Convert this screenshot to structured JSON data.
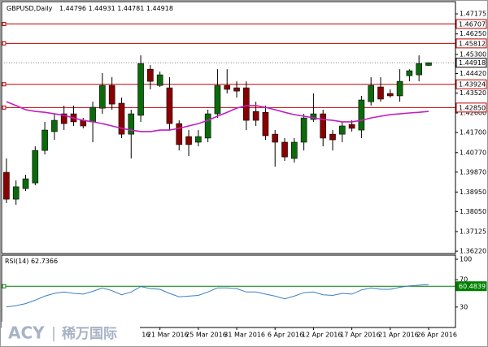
{
  "chart_data": [
    {
      "type": "candlestick",
      "title": "GBPUSD,Daily",
      "xlim": [
        -0.5,
        46.8
      ],
      "xticks": [
        {
          "value": 12,
          "label": "16"
        },
        {
          "value": 16,
          "label": "21 Mar 2016"
        },
        {
          "value": 20,
          "label": "25 Mar 2016"
        },
        {
          "value": 24,
          "label": "31 Mar 2016"
        },
        {
          "value": 28,
          "label": "6 Apr 2016"
        },
        {
          "value": 32,
          "label": "12 Apr 2016"
        },
        {
          "value": 36,
          "label": "17 Apr 2016"
        },
        {
          "value": 40,
          "label": "21 Apr 2016"
        },
        {
          "value": 44,
          "label": "26 Apr 2016"
        }
      ],
      "open": [
        1.3986,
        1.3862,
        1.3911,
        1.3937,
        1.4087,
        1.4174,
        1.4256,
        1.4256,
        1.4226,
        1.4219,
        1.4282,
        1.4387,
        1.4305,
        1.4162,
        1.4249,
        1.4462,
        1.4387,
        1.4376,
        1.4211,
        1.4151,
        1.4125,
        1.4144,
        1.4256,
        1.4387,
        1.4376,
        1.4376,
        1.4267,
        1.4263,
        1.4162,
        1.4125,
        1.405,
        1.4125,
        1.423,
        1.4256,
        1.4162,
        1.4162,
        1.4207,
        1.4181,
        1.4312,
        1.438,
        1.435,
        1.4339,
        1.4432,
        1.4436,
        1.44796
      ],
      "high": [
        1.405,
        1.3949,
        1.3975,
        1.4106,
        1.4219,
        1.4256,
        1.4294,
        1.4294,
        1.4237,
        1.4312,
        1.4444,
        1.4425,
        1.4331,
        1.4275,
        1.4526,
        1.4481,
        1.4451,
        1.4425,
        1.4226,
        1.4181,
        1.4181,
        1.4275,
        1.4462,
        1.4462,
        1.4406,
        1.4406,
        1.4312,
        1.4294,
        1.4181,
        1.4144,
        1.4144,
        1.4256,
        1.435,
        1.4275,
        1.4181,
        1.4219,
        1.4226,
        1.4339,
        1.4425,
        1.4425,
        1.4369,
        1.4462,
        1.4462,
        1.4526,
        1.44931
      ],
      "low": [
        1.3844,
        1.3836,
        1.39,
        1.3926,
        1.4069,
        1.4136,
        1.4181,
        1.42,
        1.4189,
        1.4125,
        1.4256,
        1.4275,
        1.4144,
        1.405,
        1.4219,
        1.4369,
        1.438,
        1.4181,
        1.4087,
        1.4061,
        1.4106,
        1.4125,
        1.4237,
        1.435,
        1.4331,
        1.4181,
        1.42,
        1.4136,
        1.4012,
        1.4039,
        1.4031,
        1.4087,
        1.4219,
        1.4106,
        1.4087,
        1.4125,
        1.4174,
        1.4144,
        1.4294,
        1.4312,
        1.4331,
        1.4312,
        1.4406,
        1.4406,
        1.44781
      ],
      "close": [
        1.3862,
        1.3919,
        1.3956,
        1.4087,
        1.4181,
        1.4226,
        1.4211,
        1.4219,
        1.42,
        1.4286,
        1.4387,
        1.4301,
        1.4162,
        1.4256,
        1.4488,
        1.4406,
        1.4436,
        1.4211,
        1.4114,
        1.4114,
        1.4151,
        1.4256,
        1.4387,
        1.4369,
        1.4361,
        1.4226,
        1.4226,
        1.4155,
        1.4125,
        1.4057,
        1.4125,
        1.4237,
        1.4256,
        1.4144,
        1.4136,
        1.42,
        1.4189,
        1.432,
        1.4387,
        1.4324,
        1.4339,
        1.4406,
        1.4455,
        1.4488,
        1.44918
      ],
      "up_color": "#0b6b0b",
      "down_color": "#8b0000",
      "series": [
        {
          "color": "#c21fc2",
          "values": [
            1.4312,
            1.4294,
            1.4275,
            1.4267,
            1.4263,
            1.4256,
            1.4249,
            1.4237,
            1.4226,
            1.4219,
            1.4211,
            1.42,
            1.4189,
            1.4181,
            1.4174,
            1.4174,
            1.4181,
            1.4181,
            1.4189,
            1.42,
            1.4211,
            1.4226,
            1.4245,
            1.4263,
            1.4282,
            1.4294,
            1.4294,
            1.4286,
            1.4275,
            1.4263,
            1.4252,
            1.4245,
            1.4237,
            1.423,
            1.4226,
            1.4219,
            1.4219,
            1.4226,
            1.4237,
            1.4245,
            1.4252,
            1.4256,
            1.426,
            1.4263,
            1.4267
          ]
        }
      ],
      "ylim": [
        1.3611,
        1.4774
      ],
      "yticks": [
        1.47175,
        {
          "value": 1.4625,
          "label": "1.46250"
        },
        {
          "value": 1.453,
          "label": "1.45300"
        },
        {
          "value": 1.4442,
          "label": "1.44420"
        },
        {
          "value": 1.4352,
          "label": "1.43520"
        },
        {
          "value": 1.426,
          "label": "1.42600"
        },
        {
          "value": 1.417,
          "label": "1.41700"
        },
        {
          "value": 1.4077,
          "label": "1.40770"
        },
        {
          "value": 1.3987,
          "label": "1.39870"
        },
        {
          "value": 1.3895,
          "label": "1.38950"
        },
        {
          "value": 1.3805,
          "label": "1.38050"
        },
        1.37125,
        {
          "value": 1.3622,
          "label": "1.36220"
        }
      ],
      "levels": [
        1.46707,
        1.45812,
        1.43924,
        {
          "value": 1.4285,
          "label": "1.42850"
        }
      ],
      "level_color": "#c00000",
      "price_line": 1.44918,
      "logo": [
        "ACY",
        "稀万国际"
      ]
    },
    {
      "type": "line",
      "title": "RSI(14)",
      "series": [
        {
          "color": "#3b7fc4",
          "values": [
            30,
            32,
            35,
            40,
            46,
            50,
            52,
            50,
            49,
            53,
            58,
            54,
            48,
            52,
            60,
            57,
            56,
            50,
            45,
            46,
            47,
            52,
            58,
            58,
            57,
            52,
            52,
            49,
            46,
            42,
            46,
            51,
            52,
            48,
            47,
            50,
            49,
            55,
            58,
            56,
            56,
            59,
            61,
            62,
            62.7366
          ]
        }
      ],
      "ylim": [
        0,
        106
      ],
      "yticks": [
        100,
        70,
        30
      ],
      "levels": [
        60.4839
      ],
      "level_color": "#008000"
    }
  ]
}
